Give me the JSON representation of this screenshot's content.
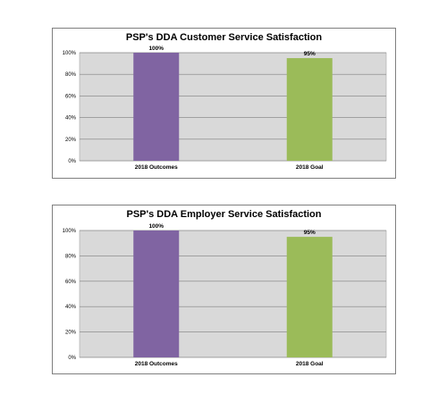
{
  "chart_data": [
    {
      "type": "bar",
      "title": "PSP's DDA Customer Service Satisfaction",
      "categories": [
        "2018 Outcomes",
        "2018 Goal"
      ],
      "values": [
        100,
        95
      ],
      "data_labels": [
        "100%",
        "95%"
      ],
      "colors": [
        "#8064a2",
        "#9bbb59"
      ],
      "yticks": [
        "0%",
        "20%",
        "40%",
        "60%",
        "80%",
        "100%"
      ],
      "ylim": [
        0,
        100
      ],
      "grid": true,
      "xlabel": "",
      "ylabel": ""
    },
    {
      "type": "bar",
      "title": "PSP's DDA Employer Service Satisfaction",
      "categories": [
        "2018 Outcomes",
        "2018 Goal"
      ],
      "values": [
        100,
        95
      ],
      "data_labels": [
        "100%",
        "95%"
      ],
      "colors": [
        "#8064a2",
        "#9bbb59"
      ],
      "yticks": [
        "0%",
        "20%",
        "40%",
        "60%",
        "80%",
        "100%"
      ],
      "ylim": [
        0,
        100
      ],
      "grid": true,
      "xlabel": "",
      "ylabel": ""
    }
  ]
}
